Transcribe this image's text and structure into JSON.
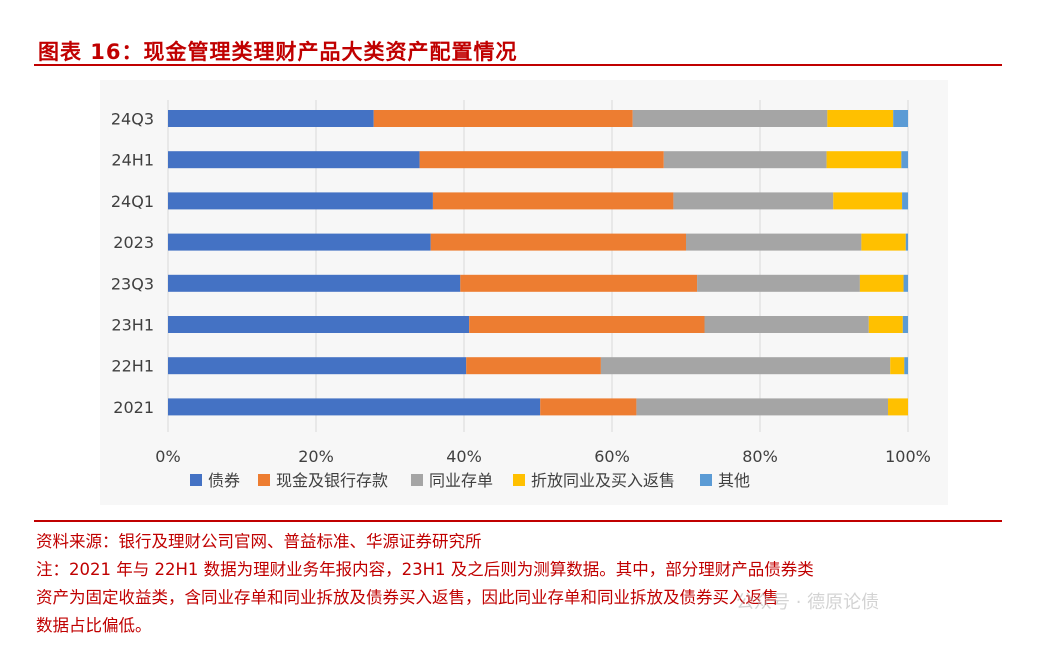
{
  "figure": {
    "title": "图表 16：现金管理类理财产品大类资产配置情况",
    "source": "资料来源：银行及理财公司官网、普益标准、华源证券研究所",
    "note_lines": [
      "注：2021 年与 22H1 数据为理财业务年报内容，23H1 及之后则为测算数据。其中，部分理财产品债券类",
      "资产为固定收益类，含同业存单和同业拆放及债券买入返售，因此同业存单和同业拆放及债券买入返售",
      "数据占比偏低。"
    ],
    "watermark": "公众号 · 德原论债"
  },
  "chart_data": {
    "type": "bar",
    "orientation": "horizontal",
    "stacked": true,
    "categories": [
      "24Q3",
      "24H1",
      "24Q1",
      "2023",
      "23Q3",
      "23H1",
      "22H1",
      "2021"
    ],
    "series": [
      {
        "name": "债券",
        "color": "#4472c4",
        "values": [
          27.8,
          34.0,
          35.8,
          35.5,
          39.5,
          40.7,
          40.3,
          50.3
        ]
      },
      {
        "name": "现金及银行存款",
        "color": "#ed7d31",
        "values": [
          35.0,
          33.0,
          32.5,
          34.5,
          32.0,
          31.8,
          18.2,
          13.0
        ]
      },
      {
        "name": "同业存单",
        "color": "#a5a5a5",
        "values": [
          26.3,
          22.0,
          21.6,
          23.7,
          22.0,
          22.2,
          39.1,
          34.0
        ]
      },
      {
        "name": "折放同业及买入返售",
        "color": "#ffc000",
        "values": [
          8.9,
          10.1,
          9.3,
          6.0,
          5.9,
          4.6,
          1.9,
          2.7
        ]
      },
      {
        "name": "其他",
        "color": "#5b9bd5",
        "values": [
          2.0,
          0.9,
          0.8,
          0.3,
          0.6,
          0.7,
          0.5,
          0.0
        ]
      }
    ],
    "xlim": [
      0,
      100
    ],
    "xticks": [
      "0%",
      "20%",
      "40%",
      "60%",
      "80%",
      "100%"
    ],
    "grid": true,
    "legend_position": "bottom"
  }
}
